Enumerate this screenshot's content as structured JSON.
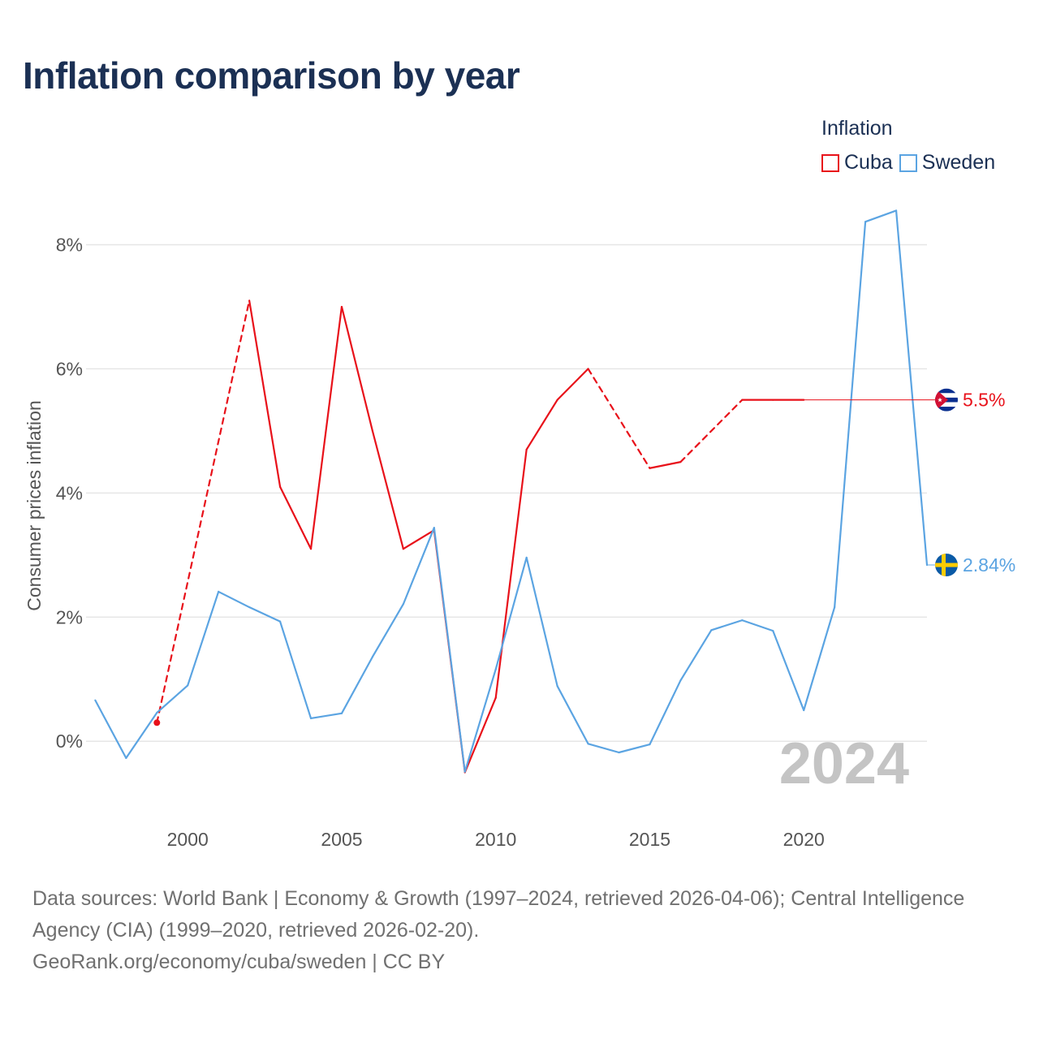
{
  "title": "Inflation comparison by year",
  "legend": {
    "title": "Inflation",
    "items": [
      {
        "label": "Cuba",
        "color": "#e8111a"
      },
      {
        "label": "Sweden",
        "color": "#5ba4e2"
      }
    ]
  },
  "footer": {
    "sources": "Data sources: World Bank | Economy & Growth (1997–2024, retrieved 2026-04-06); Central Intelligence Agency (CIA) (1999–2020, retrieved 2026-02-20).",
    "credit": "GeoRank.org/economy/cuba/sweden | CC BY"
  },
  "chart_data": {
    "type": "line",
    "title": "Inflation comparison by year",
    "xlabel": "",
    "ylabel": "Consumer prices inflation",
    "xlim": [
      1996.7,
      2024.0
    ],
    "ylim": [
      -1.2,
      9.0
    ],
    "x_ticks": [
      2000,
      2005,
      2010,
      2015,
      2020
    ],
    "y_ticks": [
      0,
      2,
      4,
      6,
      8
    ],
    "y_tick_labels": [
      "0%",
      "2%",
      "4%",
      "6%",
      "8%"
    ],
    "grid": true,
    "current_year": "2024",
    "series": [
      {
        "name": "Cuba",
        "color": "#e8111a",
        "points": [
          {
            "x": 1999,
            "y": 0.3
          },
          {
            "x": 2002,
            "y": 7.1
          },
          {
            "x": 2003,
            "y": 4.1
          },
          {
            "x": 2004,
            "y": 3.1
          },
          {
            "x": 2005,
            "y": 7.0
          },
          {
            "x": 2006,
            "y": 5.0
          },
          {
            "x": 2007,
            "y": 3.1
          },
          {
            "x": 2008,
            "y": 3.4
          },
          {
            "x": 2009,
            "y": -0.5
          },
          {
            "x": 2010,
            "y": 0.7
          },
          {
            "x": 2011,
            "y": 4.7
          },
          {
            "x": 2012,
            "y": 5.5
          },
          {
            "x": 2013,
            "y": 6.0
          },
          {
            "x": 2015,
            "y": 4.4
          },
          {
            "x": 2016,
            "y": 4.5
          },
          {
            "x": 2018,
            "y": 5.5
          },
          {
            "x": 2019,
            "y": 5.5
          },
          {
            "x": 2020,
            "y": 5.5
          }
        ],
        "end_value": 5.5,
        "end_label": "5.5%"
      },
      {
        "name": "Sweden",
        "color": "#5ba4e2",
        "points": [
          {
            "x": 1997,
            "y": 0.66
          },
          {
            "x": 1998,
            "y": -0.27
          },
          {
            "x": 1999,
            "y": 0.46
          },
          {
            "x": 2000,
            "y": 0.9
          },
          {
            "x": 2001,
            "y": 2.41
          },
          {
            "x": 2002,
            "y": 2.16
          },
          {
            "x": 2003,
            "y": 1.93
          },
          {
            "x": 2004,
            "y": 0.37
          },
          {
            "x": 2005,
            "y": 0.45
          },
          {
            "x": 2006,
            "y": 1.36
          },
          {
            "x": 2007,
            "y": 2.21
          },
          {
            "x": 2008,
            "y": 3.44
          },
          {
            "x": 2009,
            "y": -0.49
          },
          {
            "x": 2010,
            "y": 1.16
          },
          {
            "x": 2011,
            "y": 2.96
          },
          {
            "x": 2012,
            "y": 0.89
          },
          {
            "x": 2013,
            "y": -0.04
          },
          {
            "x": 2014,
            "y": -0.18
          },
          {
            "x": 2015,
            "y": -0.05
          },
          {
            "x": 2016,
            "y": 0.98
          },
          {
            "x": 2017,
            "y": 1.79
          },
          {
            "x": 2018,
            "y": 1.95
          },
          {
            "x": 2019,
            "y": 1.78
          },
          {
            "x": 2020,
            "y": 0.5
          },
          {
            "x": 2021,
            "y": 2.16
          },
          {
            "x": 2022,
            "y": 8.37
          },
          {
            "x": 2023,
            "y": 8.55
          },
          {
            "x": 2024,
            "y": 2.84
          }
        ],
        "end_value": 2.84,
        "end_label": "2.84%"
      }
    ]
  }
}
